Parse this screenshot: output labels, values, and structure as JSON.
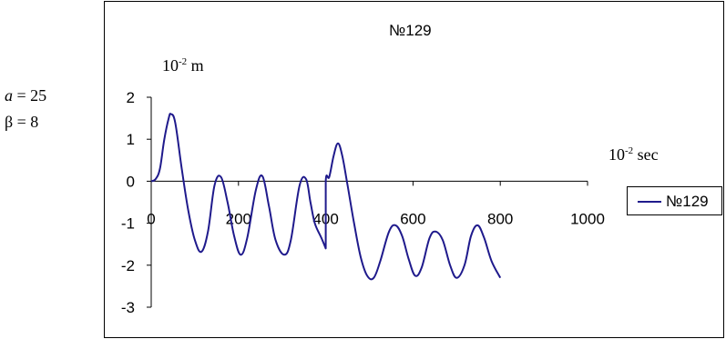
{
  "params": {
    "a_label": "a",
    "a_value": " = 25",
    "beta_label": "β = 8"
  },
  "units": {
    "y_base": "10",
    "y_exp": "-2",
    "y_unit": " m",
    "x_base": "10",
    "x_exp": "-2",
    "x_unit": " sec"
  },
  "chart_data": {
    "type": "line",
    "title": "№129",
    "xlabel": "",
    "ylabel": "",
    "xlim": [
      0,
      1000
    ],
    "ylim": [
      -3,
      2
    ],
    "x_ticks": [
      "0",
      "200",
      "400",
      "600",
      "800",
      "1000"
    ],
    "y_ticks": [
      "2",
      "1",
      "0",
      "-1",
      "-2",
      "-3"
    ],
    "grid": false,
    "legend_position": "right",
    "series": [
      {
        "name": "№129",
        "color": "#1f1a8c",
        "points": [
          [
            0,
            0.0
          ],
          [
            10,
            0.05
          ],
          [
            20,
            0.3
          ],
          [
            30,
            1.0
          ],
          [
            40,
            1.5
          ],
          [
            45,
            1.6
          ],
          [
            55,
            1.4
          ],
          [
            70,
            0.3
          ],
          [
            85,
            -0.7
          ],
          [
            100,
            -1.4
          ],
          [
            115,
            -1.68
          ],
          [
            130,
            -1.2
          ],
          [
            145,
            -0.1
          ],
          [
            160,
            0.1
          ],
          [
            175,
            -0.5
          ],
          [
            190,
            -1.3
          ],
          [
            205,
            -1.75
          ],
          [
            220,
            -1.35
          ],
          [
            240,
            -0.2
          ],
          [
            255,
            0.12
          ],
          [
            270,
            -0.6
          ],
          [
            285,
            -1.4
          ],
          [
            305,
            -1.75
          ],
          [
            320,
            -1.4
          ],
          [
            340,
            -0.1
          ],
          [
            355,
            0.05
          ],
          [
            365,
            -0.5
          ],
          [
            375,
            -1.0
          ],
          [
            390,
            -1.35
          ],
          [
            400,
            -1.6
          ],
          [
            400,
            -1.6
          ],
          [
            400,
            0.0
          ],
          [
            408,
            0.1
          ],
          [
            418,
            0.6
          ],
          [
            428,
            0.9
          ],
          [
            438,
            0.6
          ],
          [
            450,
            -0.1
          ],
          [
            465,
            -1.0
          ],
          [
            480,
            -1.8
          ],
          [
            495,
            -2.25
          ],
          [
            510,
            -2.3
          ],
          [
            525,
            -1.9
          ],
          [
            545,
            -1.2
          ],
          [
            560,
            -1.05
          ],
          [
            575,
            -1.3
          ],
          [
            590,
            -1.85
          ],
          [
            605,
            -2.25
          ],
          [
            620,
            -2.05
          ],
          [
            638,
            -1.35
          ],
          [
            652,
            -1.2
          ],
          [
            668,
            -1.4
          ],
          [
            685,
            -2.0
          ],
          [
            700,
            -2.3
          ],
          [
            718,
            -2.0
          ],
          [
            733,
            -1.3
          ],
          [
            748,
            -1.05
          ],
          [
            763,
            -1.35
          ],
          [
            780,
            -1.9
          ],
          [
            800,
            -2.3
          ]
        ]
      }
    ]
  }
}
